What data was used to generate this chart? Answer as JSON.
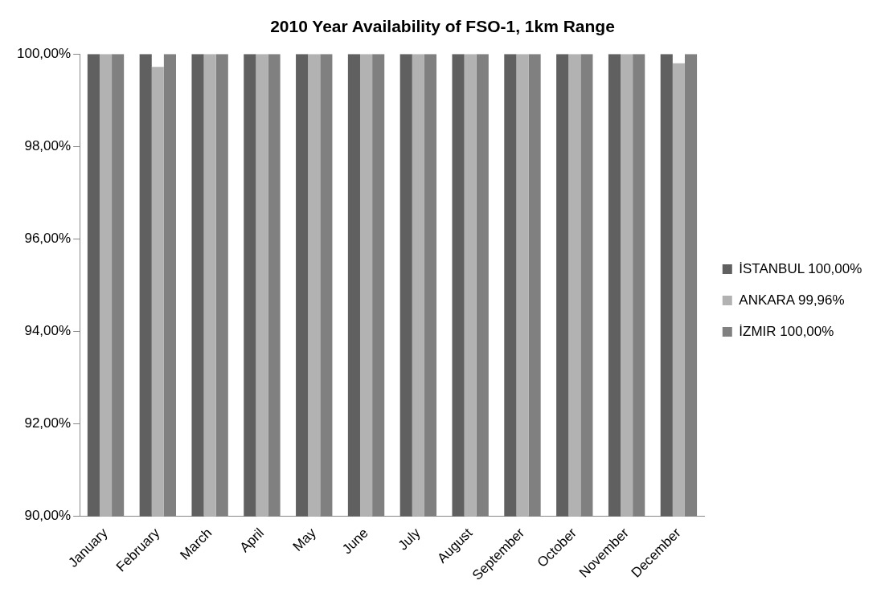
{
  "chart_data": {
    "type": "bar",
    "title": "2010 Year Availability of FSO-1, 1km Range",
    "categories": [
      "January",
      "February",
      "March",
      "April",
      "May",
      "June",
      "July",
      "August",
      "September",
      "October",
      "November",
      "December"
    ],
    "series": [
      {
        "name": "İSTANBUL 100,00%",
        "color": "#606060",
        "values": [
          100,
          100,
          100,
          100,
          100,
          100,
          100,
          100,
          100,
          100,
          100,
          100
        ]
      },
      {
        "name": "ANKARA 99,96%",
        "color": "#b2b2b2",
        "values": [
          100,
          99.72,
          100,
          100,
          100,
          100,
          100,
          100,
          100,
          100,
          100,
          99.8
        ]
      },
      {
        "name": "İZMIR 100,00%",
        "color": "#808080",
        "values": [
          100,
          100,
          100,
          100,
          100,
          100,
          100,
          100,
          100,
          100,
          100,
          100
        ]
      }
    ],
    "ylim": [
      90,
      100
    ],
    "yticks": [
      {
        "value": 90,
        "label": "90,00%"
      },
      {
        "value": 92,
        "label": "92,00%"
      },
      {
        "value": 94,
        "label": "94,00%"
      },
      {
        "value": 96,
        "label": "96,00%"
      },
      {
        "value": 98,
        "label": "98,00%"
      },
      {
        "value": 100,
        "label": "100,00%"
      }
    ],
    "grid": false,
    "legend": "right"
  }
}
